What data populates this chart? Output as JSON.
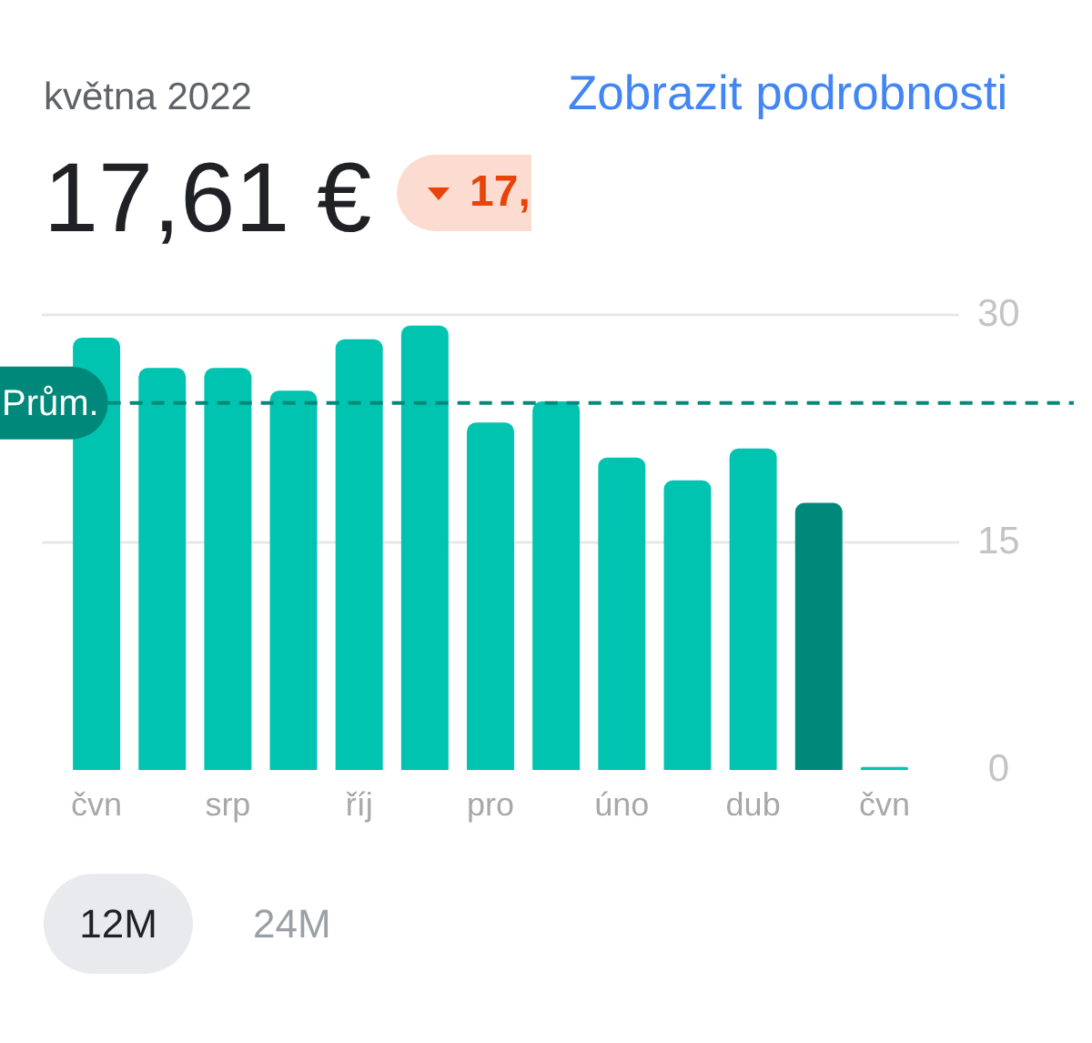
{
  "chart_data": {
    "type": "bar",
    "title": "května 2022",
    "subtitle": "17,61 €",
    "categories": [
      "čvn",
      null,
      "srp",
      null,
      "říj",
      null,
      "pro",
      null,
      "úno",
      null,
      "dub",
      null,
      "čvn"
    ],
    "values": [
      28.5,
      26.5,
      26.5,
      25.0,
      28.4,
      29.3,
      22.9,
      24.3,
      20.6,
      19.1,
      21.2,
      17.61,
      0.2
    ],
    "colors": [
      "#00c4b0",
      "#00c4b0",
      "#00c4b0",
      "#00c4b0",
      "#00c4b0",
      "#00c4b0",
      "#00c4b0",
      "#00c4b0",
      "#00c4b0",
      "#00c4b0",
      "#00c4b0",
      "#00897b",
      "#00c4b0"
    ],
    "ylim": [
      0,
      30
    ],
    "yticks": [
      0,
      15,
      30
    ],
    "grid": "y",
    "ref_lines": [
      {
        "axis": "y",
        "value": 24.2,
        "label": "Prům.",
        "color": "#00897b",
        "line_style": "dashed"
      }
    ],
    "annotations": [
      "17,",
      "Zobrazit podrobnosti",
      "12M",
      "24M"
    ]
  }
}
